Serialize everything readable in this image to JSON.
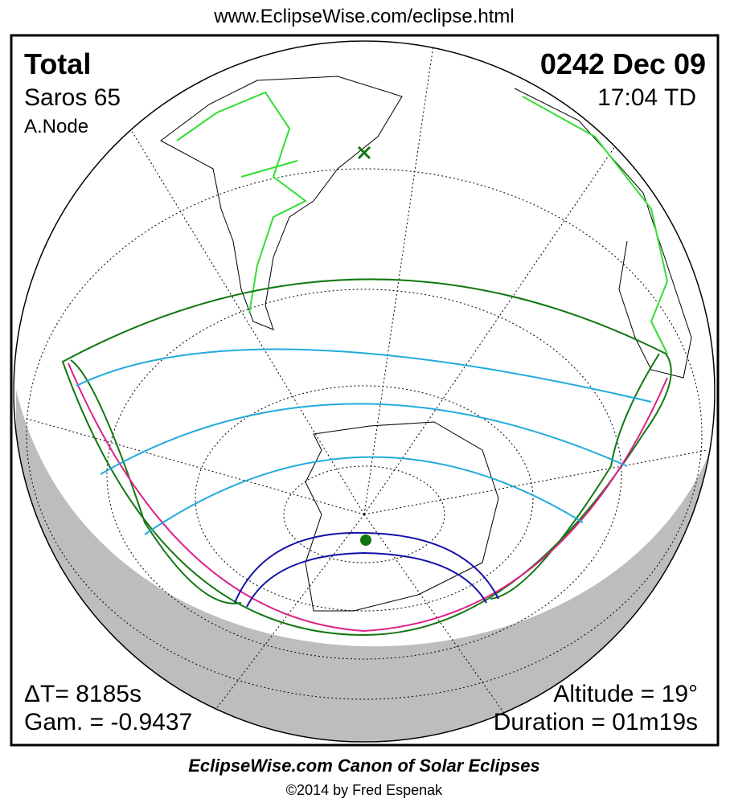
{
  "header": {
    "url": "www.EclipseWise.com/eclipse.html"
  },
  "panel": {
    "type": "Total",
    "saros": "Saros  65",
    "node": "A.Node",
    "date": "0242 Dec 09",
    "time": "17:04 TD",
    "delta_t": "ΔT=   8185s",
    "gamma": "Gam. = -0.9437",
    "altitude": "Altitude = 19°",
    "duration": "Duration = 01m19s"
  },
  "footer": {
    "title": "EclipseWise.com Canon of Solar Eclipses",
    "credit": "©2014 by Fred Espenak"
  }
}
